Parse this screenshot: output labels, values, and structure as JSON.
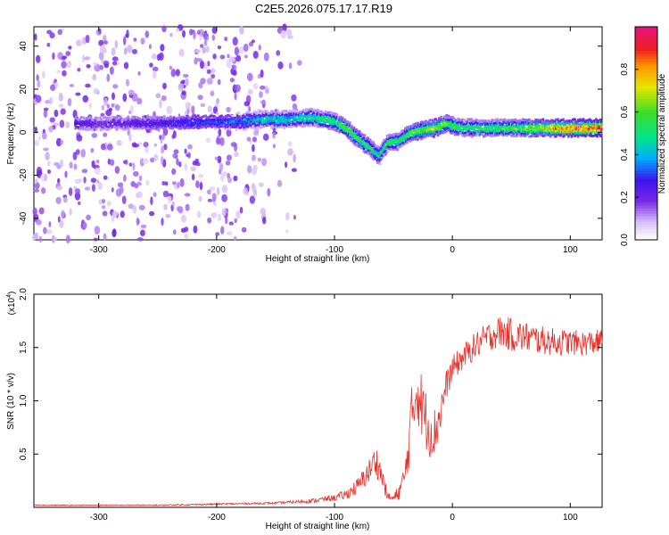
{
  "title": "C2E5.2026.075.17.17.R19",
  "colors": {
    "snr_line": "#e8302a",
    "background": "#ffffff",
    "axis": "#000000"
  },
  "chart_data": [
    {
      "type": "heatmap",
      "name": "spectrogram",
      "xlabel": "Height of straight line (km)",
      "ylabel": "Frequency (Hz)",
      "xlim": [
        -355,
        127
      ],
      "ylim": [
        -50,
        49
      ],
      "xticks": [
        -300,
        -200,
        -100,
        0,
        100
      ],
      "xticklabels": [
        "-300",
        "-200",
        "-100",
        "0",
        "100"
      ],
      "yticks": [
        -40,
        -20,
        0,
        20,
        40
      ],
      "yticklabels": [
        "-40",
        "-20",
        "0",
        "20",
        "40"
      ],
      "colorbar": {
        "label": "Normalized spectral amplitude",
        "range": [
          0,
          1
        ],
        "ticks": [
          0.0,
          0.2,
          0.4,
          0.6,
          0.8
        ],
        "ticklabels": [
          "0.0",
          "0.2",
          "0.4",
          "0.6",
          "0.8"
        ],
        "colormap": "rainbow (white-violet-blue-cyan-green-yellow-orange-red-magenta)"
      },
      "ridge": {
        "x": [
          -320,
          -300,
          -180,
          -160,
          -140,
          -120,
          -100,
          -90,
          -80,
          -70,
          -62,
          -55,
          -45,
          -35,
          -25,
          -15,
          -5,
          0,
          10,
          30,
          60,
          90,
          127
        ],
        "y": [
          4,
          4,
          5,
          6,
          6,
          7,
          5,
          2,
          -3,
          -7,
          -11,
          -5,
          -4,
          0,
          1,
          2,
          4,
          3,
          2,
          2,
          2,
          2,
          2
        ],
        "amplitude": [
          0.25,
          0.2,
          0.35,
          0.45,
          0.45,
          0.5,
          0.55,
          0.6,
          0.6,
          0.55,
          0.5,
          0.55,
          0.55,
          0.6,
          0.65,
          0.7,
          0.6,
          0.6,
          0.55,
          0.55,
          0.6,
          0.8,
          0.95
        ]
      },
      "noise_region": {
        "x": [
          -355,
          -185
        ],
        "y": [
          -50,
          49
        ],
        "amplitude": [
          0.05,
          0.2
        ]
      }
    },
    {
      "type": "line",
      "name": "snr",
      "xlabel": "Height of straight line (km)",
      "ylabel": "SNR (10 * v/v)",
      "multiplier": "(x10",
      "multiplier_exp": "4",
      "multiplier_close": ")",
      "xlim": [
        -355,
        127
      ],
      "ylim": [
        0,
        2.0
      ],
      "xticks": [
        -300,
        -200,
        -100,
        0,
        100
      ],
      "xticklabels": [
        "-300",
        "-200",
        "-100",
        "0",
        "100"
      ],
      "yticks": [
        0.5,
        1.0,
        1.5,
        2.0
      ],
      "yticklabels": [
        "0.5",
        "1.0",
        "1.5",
        "2.0"
      ],
      "series": [
        {
          "x": [
            -355,
            -300,
            -250,
            -200,
            -150,
            -120,
            -100,
            -90,
            -80,
            -70,
            -65,
            -60,
            -55,
            -50,
            -45,
            -40,
            -35,
            -30,
            -25,
            -20,
            -15,
            -10,
            -5,
            0,
            10,
            20,
            30,
            40,
            50,
            60,
            70,
            80,
            90,
            100,
            110,
            120,
            127
          ],
          "y": [
            0.02,
            0.02,
            0.02,
            0.03,
            0.04,
            0.06,
            0.09,
            0.12,
            0.2,
            0.35,
            0.45,
            0.3,
            0.1,
            0.08,
            0.15,
            0.3,
            0.8,
            1.15,
            0.9,
            0.75,
            0.7,
            0.9,
            1.15,
            1.3,
            1.42,
            1.52,
            1.6,
            1.65,
            1.62,
            1.6,
            1.58,
            1.56,
            1.55,
            1.55,
            1.54,
            1.55,
            1.55
          ],
          "noise": [
            0.005,
            0.005,
            0.006,
            0.008,
            0.01,
            0.02,
            0.03,
            0.05,
            0.08,
            0.12,
            0.15,
            0.12,
            0.04,
            0.04,
            0.08,
            0.15,
            0.3,
            0.35,
            0.3,
            0.28,
            0.25,
            0.2,
            0.14,
            0.12,
            0.12,
            0.13,
            0.14,
            0.15,
            0.16,
            0.15,
            0.14,
            0.13,
            0.13,
            0.12,
            0.12,
            0.12,
            0.12
          ]
        }
      ]
    }
  ]
}
